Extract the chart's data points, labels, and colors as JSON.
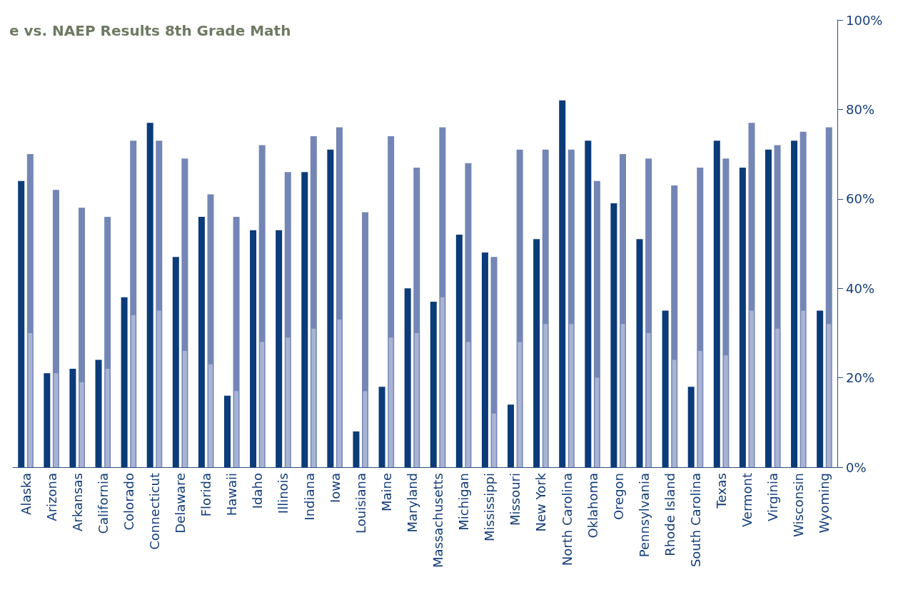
{
  "chart_data": {
    "type": "bar",
    "title": "e vs. NAEP Results 8th Grade Math",
    "categories": [
      "Alaska",
      "Arizona",
      "Arkansas",
      "California",
      "Colorado",
      "Connecticut",
      "Delaware",
      "Florida",
      "Hawaii",
      "Idaho",
      "Illinois",
      "Indiana",
      "Iowa",
      "Louisiana",
      "Maine",
      "Maryland",
      "Massachusetts",
      "Michigan",
      "Mississippi",
      "Missouri",
      "New York",
      "North Carolina",
      "Oklahoma",
      "Oregon",
      "Pennsylvania",
      "Rhode Island",
      "South Carolina",
      "Texas",
      "Vermont",
      "Virginia",
      "Wisconsin",
      "Wyoming"
    ],
    "series": [
      {
        "color": "#0b3b78",
        "values": [
          64,
          21,
          22,
          24,
          38,
          77,
          47,
          56,
          16,
          53,
          53,
          66,
          71,
          8,
          18,
          40,
          37,
          52,
          48,
          14,
          51,
          82,
          73,
          59,
          51,
          35,
          18,
          73,
          67,
          71,
          73,
          35
        ]
      },
      {
        "color": "#7486b5",
        "values": [
          70,
          62,
          58,
          56,
          73,
          73,
          69,
          61,
          56,
          72,
          66,
          74,
          76,
          57,
          74,
          67,
          76,
          68,
          47,
          71,
          71,
          71,
          64,
          70,
          69,
          63,
          67,
          69,
          77,
          72,
          75,
          76
        ]
      },
      {
        "color": "#a9b3d3",
        "values": [
          30,
          21,
          19,
          22,
          34,
          35,
          26,
          23,
          17,
          28,
          29,
          31,
          33,
          17,
          29,
          30,
          38,
          28,
          12,
          28,
          32,
          32,
          20,
          32,
          30,
          24,
          26,
          25,
          35,
          31,
          35,
          32
        ]
      }
    ],
    "ylim": [
      0,
      100
    ],
    "yticks": [
      {
        "value": 0,
        "label": "0%"
      },
      {
        "value": 20,
        "label": "20%"
      },
      {
        "value": 40,
        "label": "40%"
      },
      {
        "value": 60,
        "label": "60%"
      },
      {
        "value": 80,
        "label": "80%"
      },
      {
        "value": 100,
        "label": "100%"
      }
    ],
    "grid": false
  }
}
